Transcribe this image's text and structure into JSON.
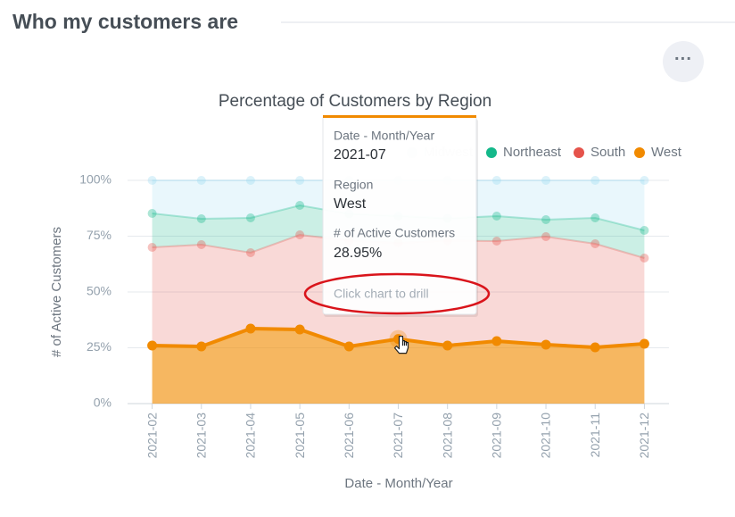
{
  "header": {
    "title": "Who my customers are",
    "menu": "···"
  },
  "chart_data": {
    "type": "area",
    "stacked": true,
    "title": "Percentage of Customers by Region",
    "x_label": "Date - Month/Year",
    "y_label": "# of Active Customers",
    "categories": [
      "2021-02",
      "2021-03",
      "2021-04",
      "2021-05",
      "2021-06",
      "2021-07",
      "2021-08",
      "2021-09",
      "2021-10",
      "2021-11",
      "2021-12"
    ],
    "series": [
      {
        "name": "Midwest",
        "color": "#9ad9f2",
        "values": [
          14.8,
          17.2,
          16.8,
          11.2,
          15,
          16,
          17,
          16,
          17.6,
          16.8,
          22.4
        ]
      },
      {
        "name": "Northeast",
        "color": "#14b88a",
        "values": [
          15.2,
          11.6,
          15.6,
          13.2,
          12,
          12,
          10,
          11.2,
          7.6,
          11.6,
          12.4
        ]
      },
      {
        "name": "South",
        "color": "#e5534b",
        "values": [
          44,
          45.6,
          34,
          42.4,
          47.4,
          43.05,
          47,
          44.8,
          48.4,
          46.4,
          38.4
        ]
      },
      {
        "name": "West",
        "color": "#f18a00",
        "values": [
          26,
          25.6,
          33.6,
          33.2,
          25.6,
          28.95,
          26,
          28,
          26.4,
          25.2,
          26.8
        ]
      }
    ],
    "ylim": [
      0,
      100
    ],
    "yticks": [
      {
        "value": 0,
        "label": "0%"
      },
      {
        "value": 25,
        "label": "25%"
      },
      {
        "value": 50,
        "label": "50%"
      },
      {
        "value": 75,
        "label": "75%"
      },
      {
        "value": 100,
        "label": "100%"
      }
    ],
    "grid": true,
    "legend": "top-right"
  },
  "tooltip": {
    "date_label": "Date - Month/Year",
    "date": "2021-07",
    "region_label": "Region",
    "region": "West",
    "measure_label": "# of Active Customers",
    "measure": "28.95%",
    "hint": "Click chart to drill"
  }
}
